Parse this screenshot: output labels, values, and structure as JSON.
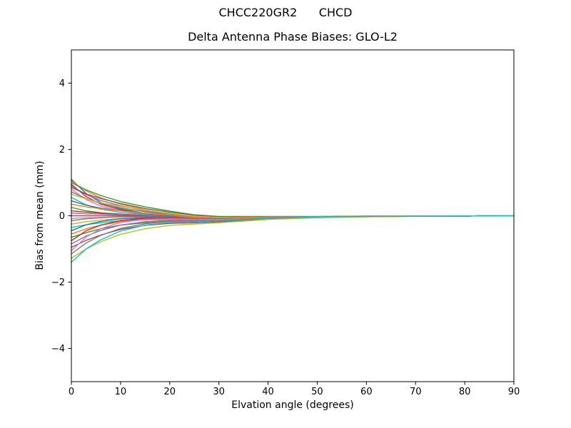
{
  "chart_data": {
    "type": "line",
    "title": "CHCC220GR2      CHCD",
    "subtitle": "Delta Antenna Phase Biases: GLO-L2",
    "xlabel": "Elvation angle (degrees)",
    "ylabel": "Bias from mean (mm)",
    "xlim": [
      0,
      90
    ],
    "ylim": [
      -5,
      5
    ],
    "xticks": [
      0,
      10,
      20,
      30,
      40,
      50,
      60,
      70,
      80,
      90
    ],
    "yticks": [
      -4,
      -2,
      0,
      2,
      4
    ],
    "grid": false,
    "legend": "none",
    "x": [
      0,
      3,
      6,
      10,
      15,
      20,
      25,
      30,
      40,
      50,
      60,
      75,
      90
    ],
    "series": [
      {
        "name": "line-01",
        "color": "#1f77b4",
        "values": [
          1.1,
          0.67,
          0.4,
          0.21,
          0.07,
          -0.01,
          -0.07,
          -0.09,
          -0.06,
          -0.04,
          -0.02,
          -0.01,
          0.0
        ]
      },
      {
        "name": "line-02",
        "color": "#ff7f0e",
        "values": [
          1.05,
          0.75,
          0.54,
          0.35,
          0.18,
          0.06,
          -0.03,
          -0.06,
          -0.05,
          -0.04,
          -0.02,
          -0.01,
          0.0
        ]
      },
      {
        "name": "line-03",
        "color": "#2ca02c",
        "values": [
          1.0,
          0.78,
          0.61,
          0.43,
          0.27,
          0.14,
          0.03,
          -0.02,
          -0.02,
          -0.02,
          -0.01,
          -0.01,
          0.0
        ]
      },
      {
        "name": "line-04",
        "color": "#d62728",
        "values": [
          0.95,
          0.58,
          0.35,
          0.18,
          0.06,
          -0.02,
          -0.08,
          -0.09,
          -0.06,
          -0.04,
          -0.02,
          -0.01,
          0.0
        ]
      },
      {
        "name": "line-05",
        "color": "#9467bd",
        "values": [
          0.9,
          0.64,
          0.46,
          0.3,
          0.15,
          0.05,
          -0.03,
          -0.07,
          -0.05,
          -0.04,
          -0.02,
          -0.01,
          0.0
        ]
      },
      {
        "name": "line-06",
        "color": "#8c564b",
        "values": [
          0.85,
          0.66,
          0.52,
          0.37,
          0.22,
          0.11,
          0.02,
          -0.03,
          -0.03,
          -0.03,
          -0.01,
          -0.01,
          0.0
        ]
      },
      {
        "name": "line-07",
        "color": "#e377c2",
        "values": [
          0.8,
          0.49,
          0.29,
          0.15,
          0.05,
          -0.02,
          -0.08,
          -0.09,
          -0.06,
          -0.04,
          -0.02,
          -0.01,
          0.0
        ]
      },
      {
        "name": "line-08",
        "color": "#7f7f7f",
        "values": [
          0.72,
          0.52,
          0.37,
          0.24,
          0.12,
          0.03,
          -0.05,
          -0.07,
          -0.05,
          -0.04,
          -0.02,
          -0.01,
          0.0
        ]
      },
      {
        "name": "line-09",
        "color": "#bcbd22",
        "values": [
          0.65,
          0.51,
          0.39,
          0.28,
          0.17,
          0.07,
          -0.01,
          -0.05,
          -0.04,
          -0.03,
          -0.02,
          -0.01,
          0.0
        ]
      },
      {
        "name": "line-10",
        "color": "#17becf",
        "values": [
          0.55,
          0.33,
          0.2,
          0.1,
          0.03,
          -0.03,
          -0.08,
          -0.09,
          -0.06,
          -0.04,
          -0.02,
          -0.01,
          0.0
        ]
      },
      {
        "name": "line-11",
        "color": "#1f77b4",
        "values": [
          0.45,
          0.32,
          0.23,
          0.15,
          0.07,
          0.0,
          -0.06,
          -0.08,
          -0.06,
          -0.04,
          -0.02,
          -0.01,
          0.0
        ]
      },
      {
        "name": "line-12",
        "color": "#ff7f0e",
        "values": [
          0.35,
          0.27,
          0.21,
          0.15,
          0.08,
          0.02,
          -0.05,
          -0.07,
          -0.05,
          -0.03,
          -0.02,
          -0.01,
          0.0
        ]
      },
      {
        "name": "line-13",
        "color": "#2ca02c",
        "values": [
          0.25,
          0.15,
          0.09,
          0.05,
          0.0,
          -0.04,
          -0.09,
          -0.1,
          -0.06,
          -0.04,
          -0.02,
          -0.01,
          0.0
        ]
      },
      {
        "name": "line-14",
        "color": "#d62728",
        "values": [
          0.15,
          0.11,
          0.08,
          0.05,
          0.01,
          -0.03,
          -0.08,
          -0.09,
          -0.06,
          -0.04,
          -0.02,
          -0.01,
          0.0
        ]
      },
      {
        "name": "line-15",
        "color": "#9467bd",
        "values": [
          0.08,
          0.06,
          0.05,
          0.03,
          0.0,
          -0.03,
          -0.08,
          -0.09,
          -0.06,
          -0.04,
          -0.02,
          -0.01,
          0.0
        ]
      },
      {
        "name": "line-16",
        "color": "#8c564b",
        "values": [
          0.0,
          0.0,
          0.0,
          0.0,
          -0.02,
          -0.05,
          -0.09,
          -0.1,
          -0.06,
          -0.04,
          -0.02,
          -0.01,
          0.0
        ]
      },
      {
        "name": "line-17",
        "color": "#e377c2",
        "values": [
          -0.08,
          -0.06,
          -0.05,
          -0.03,
          -0.04,
          -0.07,
          -0.1,
          -0.11,
          -0.06,
          -0.04,
          -0.02,
          -0.01,
          0.0
        ]
      },
      {
        "name": "line-18",
        "color": "#7f7f7f",
        "values": [
          -0.15,
          -0.09,
          -0.06,
          -0.03,
          -0.03,
          -0.06,
          -0.09,
          -0.1,
          -0.06,
          -0.04,
          -0.02,
          -0.01,
          0.0
        ]
      },
      {
        "name": "line-19",
        "color": "#bcbd22",
        "values": [
          -0.25,
          -0.18,
          -0.13,
          -0.08,
          -0.07,
          -0.08,
          -0.11,
          -0.11,
          -0.06,
          -0.04,
          -0.02,
          -0.01,
          0.0
        ]
      },
      {
        "name": "line-20",
        "color": "#17becf",
        "values": [
          -0.35,
          -0.27,
          -0.21,
          -0.15,
          -0.12,
          -0.12,
          -0.13,
          -0.13,
          -0.07,
          -0.05,
          -0.02,
          -0.01,
          0.0
        ]
      },
      {
        "name": "line-21",
        "color": "#1f77b4",
        "values": [
          -0.45,
          -0.27,
          -0.17,
          -0.09,
          -0.06,
          -0.07,
          -0.1,
          -0.1,
          -0.06,
          -0.04,
          -0.02,
          -0.01,
          0.0
        ]
      },
      {
        "name": "line-22",
        "color": "#ff7f0e",
        "values": [
          -0.55,
          -0.39,
          -0.28,
          -0.18,
          -0.12,
          -0.11,
          -0.12,
          -0.12,
          -0.07,
          -0.04,
          -0.02,
          -0.01,
          0.0
        ]
      },
      {
        "name": "line-23",
        "color": "#2ca02c",
        "values": [
          -0.65,
          -0.51,
          -0.39,
          -0.28,
          -0.21,
          -0.17,
          -0.17,
          -0.15,
          -0.08,
          -0.05,
          -0.02,
          -0.01,
          0.0
        ]
      },
      {
        "name": "line-24",
        "color": "#d62728",
        "values": [
          -0.75,
          -0.45,
          -0.28,
          -0.14,
          -0.08,
          -0.08,
          -0.1,
          -0.11,
          -0.06,
          -0.04,
          -0.02,
          -0.01,
          0.0
        ]
      },
      {
        "name": "line-25",
        "color": "#9467bd",
        "values": [
          -0.85,
          -0.61,
          -0.44,
          -0.28,
          -0.18,
          -0.14,
          -0.14,
          -0.13,
          -0.07,
          -0.04,
          -0.02,
          -0.01,
          0.0
        ]
      },
      {
        "name": "line-26",
        "color": "#8c564b",
        "values": [
          -0.95,
          -0.74,
          -0.58,
          -0.41,
          -0.29,
          -0.23,
          -0.21,
          -0.18,
          -0.09,
          -0.05,
          -0.03,
          -0.01,
          0.0
        ]
      },
      {
        "name": "line-27",
        "color": "#e377c2",
        "values": [
          -1.05,
          -0.64,
          -0.39,
          -0.2,
          -0.11,
          -0.09,
          -0.11,
          -0.11,
          -0.06,
          -0.04,
          -0.02,
          -0.01,
          0.0
        ]
      },
      {
        "name": "line-28",
        "color": "#7f7f7f",
        "values": [
          -1.15,
          -0.82,
          -0.59,
          -0.38,
          -0.24,
          -0.17,
          -0.16,
          -0.14,
          -0.07,
          -0.04,
          -0.02,
          -0.01,
          0.0
        ]
      },
      {
        "name": "line-29",
        "color": "#bcbd22",
        "values": [
          -1.28,
          -1.0,
          -0.78,
          -0.56,
          -0.39,
          -0.29,
          -0.25,
          -0.21,
          -0.11,
          -0.06,
          -0.03,
          -0.01,
          0.0
        ]
      },
      {
        "name": "line-30",
        "color": "#17becf",
        "values": [
          -1.4,
          -1.0,
          -0.72,
          -0.46,
          -0.28,
          -0.2,
          -0.18,
          -0.15,
          -0.08,
          -0.04,
          -0.02,
          -0.01,
          0.0
        ]
      }
    ]
  }
}
